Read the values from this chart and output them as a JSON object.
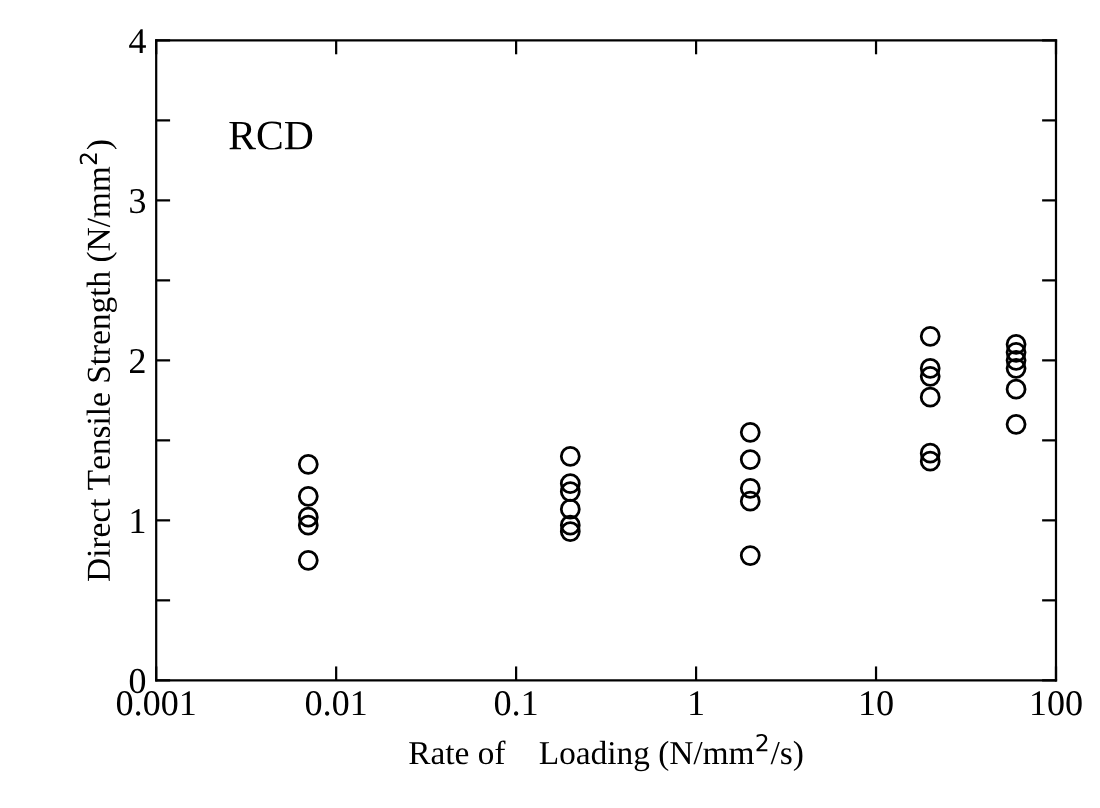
{
  "chart_data": {
    "type": "scatter",
    "xlabel": "Rate of    Loading (N/mm$^{2}$/s)",
    "ylabel": "Direct Tensile Strength (N/mm$^{2}$)",
    "annotations": [
      "RCD"
    ],
    "log": "x",
    "marker": "circle",
    "grid": false,
    "legend": false,
    "xlim": [
      0.001,
      100
    ],
    "xticks": [
      0.001,
      0.01,
      0.1,
      1,
      10,
      100
    ],
    "ylim": [
      0,
      4
    ],
    "yticks": [
      0,
      {
        "value": 0.5,
        "label": null
      },
      1,
      {
        "value": 1.5,
        "label": null
      },
      2,
      {
        "value": 2.5,
        "label": null
      },
      3,
      {
        "value": 3.5,
        "label": null
      },
      4
    ],
    "series": [
      {
        "color": "#000000",
        "x": [
          0.007,
          0.007,
          0.007,
          0.007,
          0.007,
          0.2,
          0.2,
          0.2,
          0.2,
          0.2,
          0.2,
          2,
          2,
          2,
          2,
          2,
          20,
          20,
          20,
          20,
          20,
          20,
          60,
          60,
          60,
          60,
          60,
          60
        ],
        "values": [
          1.35,
          1.15,
          1.02,
          0.97,
          0.75,
          1.4,
          1.23,
          1.18,
          1.07,
          0.97,
          0.93,
          1.55,
          1.38,
          1.2,
          1.12,
          0.78,
          2.15,
          1.95,
          1.9,
          1.77,
          1.42,
          1.37,
          2.1,
          2.05,
          2.0,
          1.95,
          1.82,
          1.6
        ]
      }
    ]
  }
}
